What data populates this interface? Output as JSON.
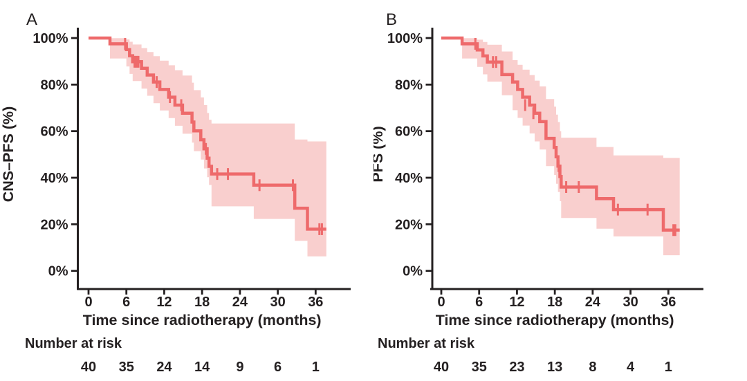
{
  "page": {
    "background": "#ffffff",
    "text_color": "#242021",
    "accent_line_color": "#ee6a6b",
    "accent_band_color": "#f9cfce"
  },
  "chart_data": [
    {
      "type": "line",
      "variant": "kaplan-meier-step",
      "panel_label": "A",
      "ylabel": "CNS–PFS (%)",
      "xlabel": "Time since radiotherapy (months)",
      "x_ticks": [
        0,
        6,
        12,
        18,
        24,
        30,
        36
      ],
      "y_ticks_pct": [
        0,
        20,
        40,
        60,
        80,
        100
      ],
      "y_tick_labels": [
        "0%",
        "20%",
        "40%",
        "60%",
        "80%",
        "100%"
      ],
      "xlim": [
        0,
        38
      ],
      "ylim": [
        0,
        100
      ],
      "grid": false,
      "legend": "none",
      "line_color": "#ee6a6b",
      "band_color": "#f9cfce",
      "steps_time_pct": [
        [
          0,
          100
        ],
        [
          3.4,
          97.5
        ],
        [
          6.0,
          95.0
        ],
        [
          6.5,
          92.4
        ],
        [
          7.0,
          89.8
        ],
        [
          8.4,
          87.0
        ],
        [
          9.3,
          84.1
        ],
        [
          10.3,
          81.1
        ],
        [
          11.3,
          77.9
        ],
        [
          12.7,
          74.6
        ],
        [
          13.7,
          71.2
        ],
        [
          14.9,
          67.7
        ],
        [
          16.4,
          63.9
        ],
        [
          16.7,
          60.1
        ],
        [
          17.8,
          56.3
        ],
        [
          18.3,
          52.4
        ],
        [
          18.8,
          48.4
        ],
        [
          19.1,
          44.9
        ],
        [
          19.5,
          41.6
        ],
        [
          26.2,
          36.8
        ],
        [
          32.7,
          26.9
        ],
        [
          34.7,
          17.9
        ]
      ],
      "end_time": 37.7,
      "censor_marks_time_pct": [
        [
          5.8,
          97.5
        ],
        [
          7.3,
          89.8
        ],
        [
          7.6,
          89.8
        ],
        [
          7.9,
          89.8
        ],
        [
          10.8,
          81.1
        ],
        [
          12.9,
          74.6
        ],
        [
          14.7,
          71.2
        ],
        [
          18.6,
          52.4
        ],
        [
          20.4,
          41.6
        ],
        [
          22.1,
          41.6
        ],
        [
          27.1,
          36.8
        ],
        [
          32.4,
          36.8
        ],
        [
          36.6,
          17.9
        ],
        [
          37.0,
          17.9
        ]
      ],
      "ci_time_upper_lower": [
        [
          3.4,
          99.9,
          91.2
        ],
        [
          6.0,
          99.4,
          87.8
        ],
        [
          6.5,
          98.4,
          84.6
        ],
        [
          7.0,
          97.2,
          81.5
        ],
        [
          8.4,
          95.7,
          78.3
        ],
        [
          9.3,
          94.0,
          75.2
        ],
        [
          10.3,
          92.2,
          72.0
        ],
        [
          11.3,
          90.3,
          68.9
        ],
        [
          12.7,
          88.3,
          65.6
        ],
        [
          13.7,
          86.2,
          62.3
        ],
        [
          14.9,
          83.9,
          58.9
        ],
        [
          16.4,
          80.8,
          55.1
        ],
        [
          16.7,
          77.6,
          51.4
        ],
        [
          17.8,
          74.5,
          47.8
        ],
        [
          18.3,
          71.2,
          44.0
        ],
        [
          18.8,
          67.8,
          40.2
        ],
        [
          19.1,
          64.9,
          36.9
        ],
        [
          19.5,
          63.3,
          27.7
        ],
        [
          26.2,
          63.3,
          22.3
        ],
        [
          32.7,
          56.4,
          12.9
        ],
        [
          34.7,
          55.6,
          6.2
        ]
      ],
      "number_at_risk": {
        "label": "Number at risk",
        "times": [
          0,
          6,
          12,
          18,
          24,
          30,
          36
        ],
        "counts": [
          40,
          35,
          24,
          14,
          9,
          6,
          1
        ]
      }
    },
    {
      "type": "line",
      "variant": "kaplan-meier-step",
      "panel_label": "B",
      "ylabel": "PFS (%)",
      "xlabel": "Time since radiotherapy (months)",
      "x_ticks": [
        0,
        6,
        12,
        18,
        24,
        30,
        36
      ],
      "y_ticks_pct": [
        0,
        20,
        40,
        60,
        80,
        100
      ],
      "y_tick_labels": [
        "0%",
        "20%",
        "40%",
        "60%",
        "80%",
        "100%"
      ],
      "xlim": [
        0,
        38
      ],
      "ylim": [
        0,
        100
      ],
      "grid": false,
      "legend": "none",
      "line_color": "#ee6a6b",
      "band_color": "#f9cfce",
      "steps_time_pct": [
        [
          0,
          100
        ],
        [
          3.3,
          97.5
        ],
        [
          5.7,
          94.9
        ],
        [
          6.6,
          92.3
        ],
        [
          7.3,
          89.7
        ],
        [
          9.6,
          84.3
        ],
        [
          11.3,
          81.1
        ],
        [
          12.1,
          77.9
        ],
        [
          12.9,
          74.6
        ],
        [
          14.0,
          71.2
        ],
        [
          14.8,
          67.7
        ],
        [
          15.6,
          64.1
        ],
        [
          16.6,
          56.9
        ],
        [
          17.9,
          53.0
        ],
        [
          18.2,
          49.0
        ],
        [
          18.5,
          45.0
        ],
        [
          18.8,
          40.5
        ],
        [
          19.0,
          36.0
        ],
        [
          24.6,
          31.0
        ],
        [
          27.3,
          26.3
        ],
        [
          35.2,
          17.5
        ]
      ],
      "end_time": 37.8,
      "censor_marks_time_pct": [
        [
          5.4,
          97.5
        ],
        [
          8.2,
          89.7
        ],
        [
          8.7,
          89.7
        ],
        [
          13.3,
          71.2
        ],
        [
          14.6,
          67.7
        ],
        [
          18.6,
          45.0
        ],
        [
          19.8,
          36.0
        ],
        [
          21.8,
          36.0
        ],
        [
          28.0,
          26.3
        ],
        [
          32.7,
          26.3
        ],
        [
          36.8,
          17.5
        ],
        [
          37.1,
          17.5
        ]
      ],
      "ci_time_upper_lower": [
        [
          3.3,
          99.9,
          91.2
        ],
        [
          5.7,
          99.3,
          87.6
        ],
        [
          6.6,
          98.3,
          84.4
        ],
        [
          7.3,
          97.1,
          81.3
        ],
        [
          9.6,
          94.2,
          75.4
        ],
        [
          11.3,
          90.5,
          69.0
        ],
        [
          12.1,
          88.5,
          65.7
        ],
        [
          12.9,
          86.4,
          62.4
        ],
        [
          14.0,
          84.1,
          59.0
        ],
        [
          14.8,
          81.7,
          55.6
        ],
        [
          15.6,
          79.2,
          52.1
        ],
        [
          16.6,
          73.8,
          45.0
        ],
        [
          17.9,
          70.5,
          41.2
        ],
        [
          18.2,
          67.1,
          37.4
        ],
        [
          18.5,
          63.9,
          33.9
        ],
        [
          18.8,
          60.0,
          29.9
        ],
        [
          19.0,
          57.2,
          22.7
        ],
        [
          24.6,
          53.2,
          18.1
        ],
        [
          27.3,
          49.6,
          14.8
        ],
        [
          35.2,
          48.5,
          6.7
        ]
      ],
      "number_at_risk": {
        "label": "Number at risk",
        "times": [
          0,
          6,
          12,
          18,
          24,
          30,
          36
        ],
        "counts": [
          40,
          35,
          23,
          13,
          8,
          4,
          1
        ]
      }
    }
  ]
}
